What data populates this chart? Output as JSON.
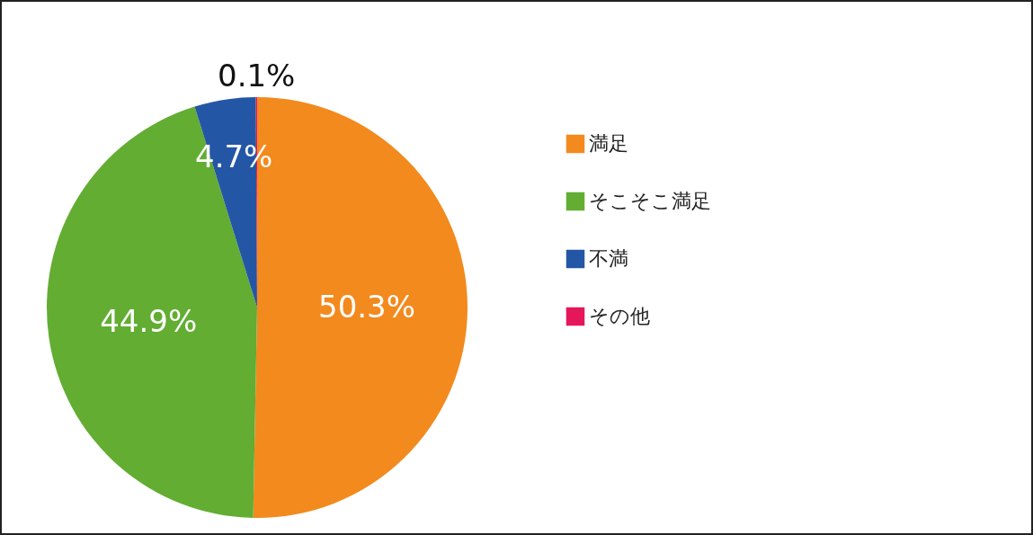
{
  "chart_data": {
    "type": "pie",
    "categories": [
      "満足",
      "そこそこ満足",
      "不満",
      "その他"
    ],
    "values": [
      50.3,
      44.9,
      4.7,
      0.1
    ],
    "colors": [
      "#f28a1e",
      "#62ad32",
      "#2456a6",
      "#e5175a"
    ],
    "value_labels": [
      "50.3%",
      "44.9%",
      "4.7%",
      "0.1%"
    ],
    "legend": "right"
  }
}
